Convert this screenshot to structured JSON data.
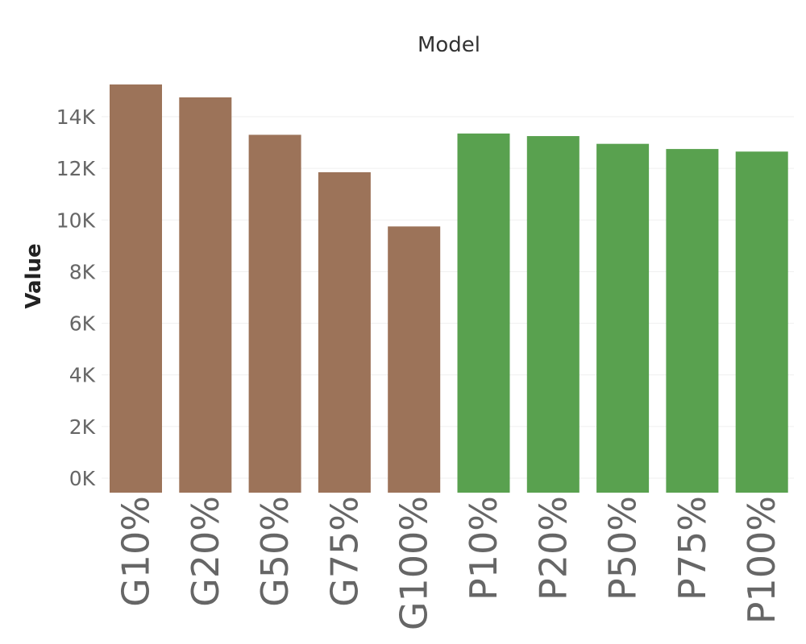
{
  "chart_data": {
    "type": "bar",
    "title": "Model",
    "ylabel": "Value",
    "xlabel": "",
    "categories": [
      "G10%",
      "G20%",
      "G50%",
      "G75%",
      "G100%",
      "P10%",
      "P20%",
      "P50%",
      "P75%",
      "P100%"
    ],
    "values": [
      15250,
      14750,
      13300,
      11850,
      9750,
      13350,
      13250,
      12950,
      12750,
      12650
    ],
    "bar_colors": [
      "#9c7359",
      "#9c7359",
      "#9c7359",
      "#9c7359",
      "#9c7359",
      "#59a14f",
      "#59a14f",
      "#59a14f",
      "#59a14f",
      "#59a14f"
    ],
    "ylim": [
      -550,
      16000
    ],
    "yticks": [
      0,
      2000,
      4000,
      6000,
      8000,
      10000,
      12000,
      14000
    ],
    "ytick_labels": [
      "0K",
      "2K",
      "4K",
      "6K",
      "8K",
      "10K",
      "12K",
      "14K"
    ],
    "grid": true
  }
}
